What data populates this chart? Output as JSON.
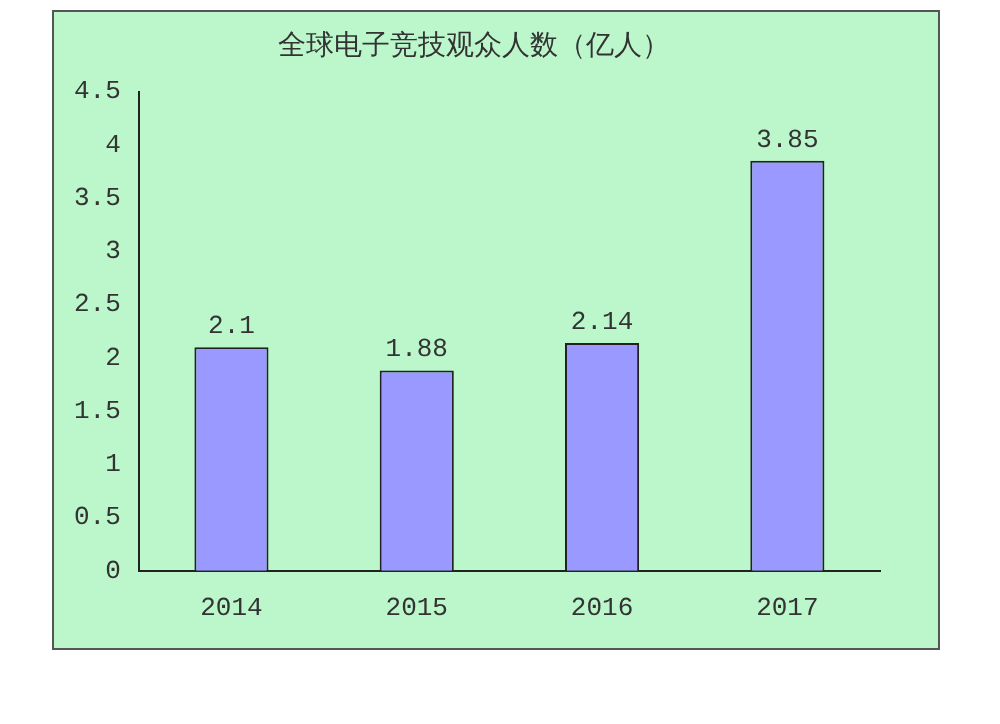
{
  "chart_data": {
    "type": "bar",
    "title": "全球电子竞技观众人数（亿人）",
    "categories": [
      "2014",
      "2015",
      "2016",
      "2017"
    ],
    "series": [
      {
        "color": "#9999ff",
        "values": [
          2.1,
          1.88,
          2.14,
          3.85
        ]
      }
    ],
    "ylim": [
      0,
      4.5
    ],
    "yticks": [
      0,
      0.5,
      1,
      1.5,
      2,
      2.5,
      3,
      3.5,
      4,
      4.5
    ],
    "data_labels": true,
    "grid": false,
    "legend": false
  }
}
